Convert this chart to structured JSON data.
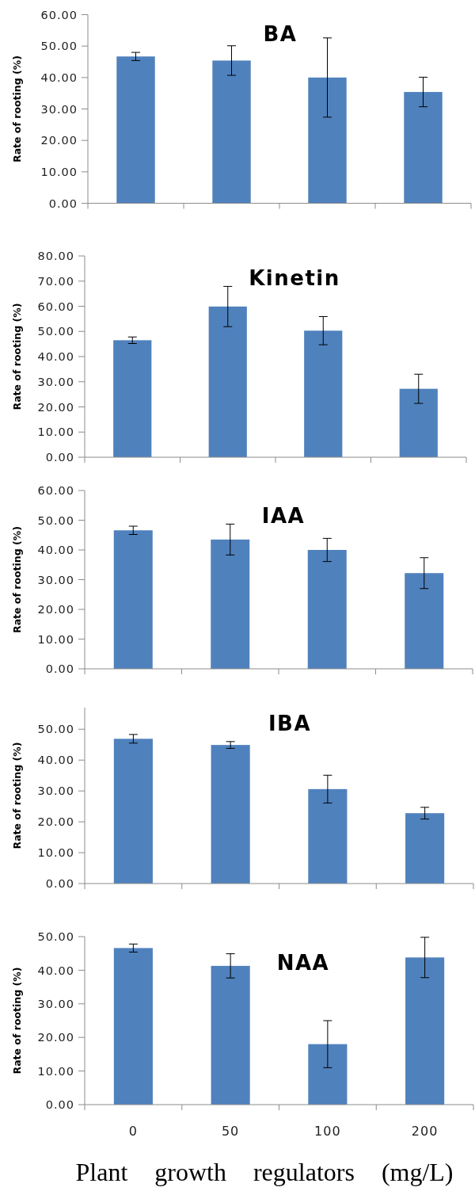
{
  "chart_data": [
    {
      "type": "bar",
      "title": "BA",
      "ylabel": "Rate of rooting (%)",
      "categories": [
        "0",
        "50",
        "100",
        "200"
      ],
      "values": [
        46.7,
        45.4,
        40.0,
        35.4
      ],
      "errors": [
        1.3,
        4.7,
        12.6,
        4.7
      ],
      "color": "#4f81bd",
      "ylim": [
        0,
        60
      ],
      "yticks": [
        {
          "value": 0,
          "label": "0.00"
        },
        {
          "value": 10,
          "label": "10.00"
        },
        {
          "value": 20,
          "label": "20.00"
        },
        {
          "value": 30,
          "label": "30.00"
        },
        {
          "value": 40,
          "label": "40.00"
        },
        {
          "value": 50,
          "label": "50.00"
        },
        {
          "value": 60,
          "label": "60.00"
        }
      ],
      "tick_labels": "y"
    },
    {
      "type": "bar",
      "title": "Kinetin",
      "ylabel": "Rate of rooting (%)",
      "categories": [
        "0",
        "50",
        "100",
        "200"
      ],
      "values": [
        46.5,
        59.9,
        50.3,
        27.2
      ],
      "errors": [
        1.3,
        8.0,
        5.6,
        5.8
      ],
      "color": "#4f81bd",
      "ylim": [
        0,
        80
      ],
      "yticks": [
        {
          "value": 0,
          "label": "0.00"
        },
        {
          "value": 10,
          "label": "10.00"
        },
        {
          "value": 20,
          "label": "20.00"
        },
        {
          "value": 30,
          "label": "30.00"
        },
        {
          "value": 40,
          "label": "40.00"
        },
        {
          "value": 50,
          "label": "50.00"
        },
        {
          "value": 60,
          "label": "60.00"
        },
        {
          "value": 70,
          "label": "70.00"
        },
        {
          "value": 80,
          "label": "80.00"
        }
      ],
      "tick_labels": "y"
    },
    {
      "type": "bar",
      "title": "IAA",
      "ylabel": "Rate of rooting (%)",
      "categories": [
        "0",
        "50",
        "100",
        "200"
      ],
      "values": [
        46.6,
        43.5,
        40.0,
        32.2
      ],
      "errors": [
        1.4,
        5.2,
        3.9,
        5.2
      ],
      "color": "#4f81bd",
      "ylim": [
        0,
        60
      ],
      "yticks": [
        {
          "value": 0,
          "label": "0.00"
        },
        {
          "value": 10,
          "label": "10.00"
        },
        {
          "value": 20,
          "label": "20.00"
        },
        {
          "value": 30,
          "label": "30.00"
        },
        {
          "value": 40,
          "label": "40.00"
        },
        {
          "value": 50,
          "label": "50.00"
        },
        {
          "value": 60,
          "label": "60.00"
        }
      ],
      "tick_labels": "y"
    },
    {
      "type": "bar",
      "title": "IBA",
      "ylabel": "Rate of rooting (%)",
      "categories": [
        "0",
        "50",
        "100",
        "200"
      ],
      "values": [
        46.9,
        44.9,
        30.6,
        22.8
      ],
      "errors": [
        1.4,
        1.1,
        4.5,
        1.9
      ],
      "color": "#4f81bd",
      "ylim": [
        0,
        57
      ],
      "yticks": [
        {
          "value": 0,
          "label": "0.00"
        },
        {
          "value": 10,
          "label": "10.00"
        },
        {
          "value": 20,
          "label": "20.00"
        },
        {
          "value": 30,
          "label": "30.00"
        },
        {
          "value": 40,
          "label": "40.00"
        },
        {
          "value": 50,
          "label": "50.00"
        }
      ],
      "tick_labels": "y"
    },
    {
      "type": "bar",
      "title": "NAA",
      "ylabel": "Rate of rooting (%)",
      "xlabel": "Plant growth regulators (mg/L)",
      "categories": [
        "0",
        "50",
        "100",
        "200"
      ],
      "values": [
        46.6,
        41.3,
        18.0,
        43.8
      ],
      "errors": [
        1.2,
        3.6,
        7.0,
        6.0
      ],
      "color": "#4f81bd",
      "ylim": [
        0,
        50
      ],
      "yticks": [
        {
          "value": 0,
          "label": "0.00"
        },
        {
          "value": 10,
          "label": "10.00"
        },
        {
          "value": 20,
          "label": "20.00"
        },
        {
          "value": 30,
          "label": "30.00"
        },
        {
          "value": 40,
          "label": "40.00"
        },
        {
          "value": 50,
          "label": "50.00"
        }
      ]
    }
  ]
}
